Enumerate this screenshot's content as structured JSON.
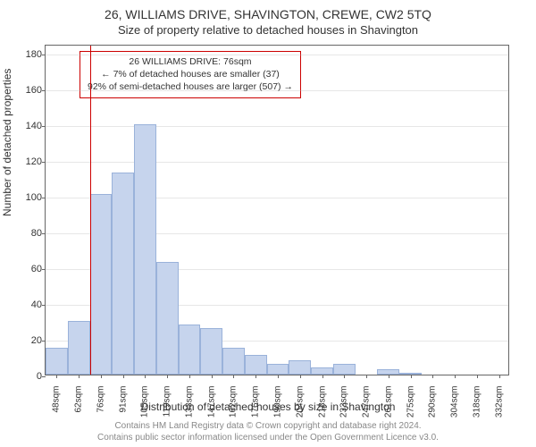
{
  "titles": {
    "main": "26, WILLIAMS DRIVE, SHAVINGTON, CREWE, CW2 5TQ",
    "sub": "Size of property relative to detached houses in Shavington"
  },
  "axes": {
    "y_label": "Number of detached properties",
    "x_label": "Distribution of detached houses by size in Shavington",
    "y_ticks": [
      0,
      20,
      40,
      60,
      80,
      100,
      120,
      140,
      160,
      180
    ],
    "y_max": 185,
    "x_tick_labels": [
      "48sqm",
      "62sqm",
      "76sqm",
      "91sqm",
      "105sqm",
      "119sqm",
      "133sqm",
      "147sqm",
      "162sqm",
      "176sqm",
      "190sqm",
      "204sqm",
      "218sqm",
      "233sqm",
      "247sqm",
      "261sqm",
      "275sqm",
      "290sqm",
      "304sqm",
      "318sqm",
      "332sqm"
    ]
  },
  "histogram": {
    "type": "histogram",
    "bar_color": "#c6d4ed",
    "bar_border_color": "#9ab2da",
    "values": [
      15,
      30,
      101,
      113,
      140,
      63,
      28,
      26,
      15,
      11,
      6,
      8,
      4,
      6,
      0,
      3,
      1,
      0,
      0,
      0,
      0
    ],
    "bar_count": 21
  },
  "marker": {
    "position_bin": 2,
    "line_color": "#cc0000",
    "box": {
      "line1": "26 WILLIAMS DRIVE: 76sqm",
      "line2": "← 7% of detached houses are smaller (37)",
      "line3": "92% of semi-detached houses are larger (507) →"
    }
  },
  "attribution": {
    "line1": "Contains HM Land Registry data © Crown copyright and database right 2024.",
    "line2": "Contains public sector information licensed under the Open Government Licence v3.0."
  },
  "styling": {
    "font_family": "Arial, sans-serif",
    "title_fontsize": 14,
    "subtitle_fontsize": 13,
    "axis_label_fontsize": 12,
    "tick_fontsize": 11,
    "attribution_fontsize": 10,
    "background_color": "#ffffff",
    "grid_color": "#bbbbbb",
    "axis_color": "#666666"
  }
}
